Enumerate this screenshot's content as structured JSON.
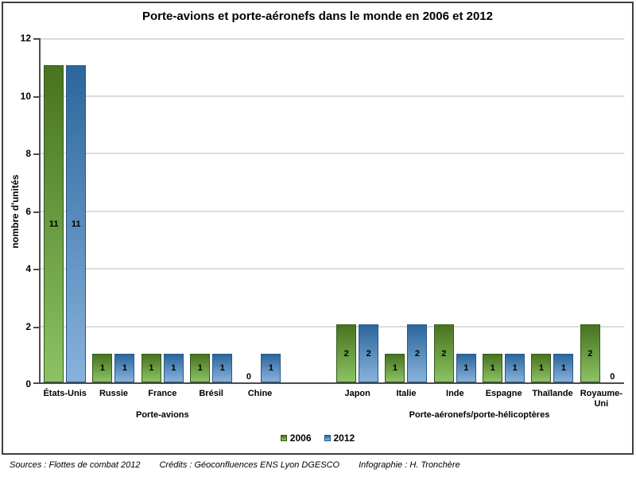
{
  "chart_data": {
    "type": "bar",
    "title": "Porte-avions et porte-aéronefs dans le monde en 2006 et 2012",
    "ylabel": "nombre d'unités",
    "ylim": [
      0,
      12
    ],
    "ytick_step": 2,
    "grid": "horizontal",
    "legend_position": "bottom-center",
    "series": [
      {
        "name": "2006",
        "color_top": "#48731f",
        "color_bottom": "#8cc264",
        "color_border": "#33591c"
      },
      {
        "name": "2012",
        "color_top": "#2c669c",
        "color_bottom": "#88b2dc",
        "color_border": "#24578b"
      }
    ],
    "groups": [
      {
        "label": "Porte-avions",
        "categories": [
          "États-Unis",
          "Russie",
          "France",
          "Brésil",
          "Chine"
        ],
        "values": {
          "2006": [
            11,
            1,
            1,
            1,
            0
          ],
          "2012": [
            11,
            1,
            1,
            1,
            1
          ]
        }
      },
      {
        "label": "Porte-aéronefs/porte-hélicoptères",
        "categories": [
          "Japon",
          "Italie",
          "Inde",
          "Espagne",
          "Thaïlande",
          "Royaume-Uni"
        ],
        "values": {
          "2006": [
            2,
            1,
            2,
            1,
            1,
            2
          ],
          "2012": [
            2,
            2,
            1,
            1,
            1,
            0
          ]
        }
      }
    ]
  },
  "footer": {
    "sources": "Sources : Flottes de combat 2012",
    "credits": "Crédits : Géoconfluences ENS Lyon DGESCO",
    "infographie": "Infographie : H. Tronchère"
  }
}
